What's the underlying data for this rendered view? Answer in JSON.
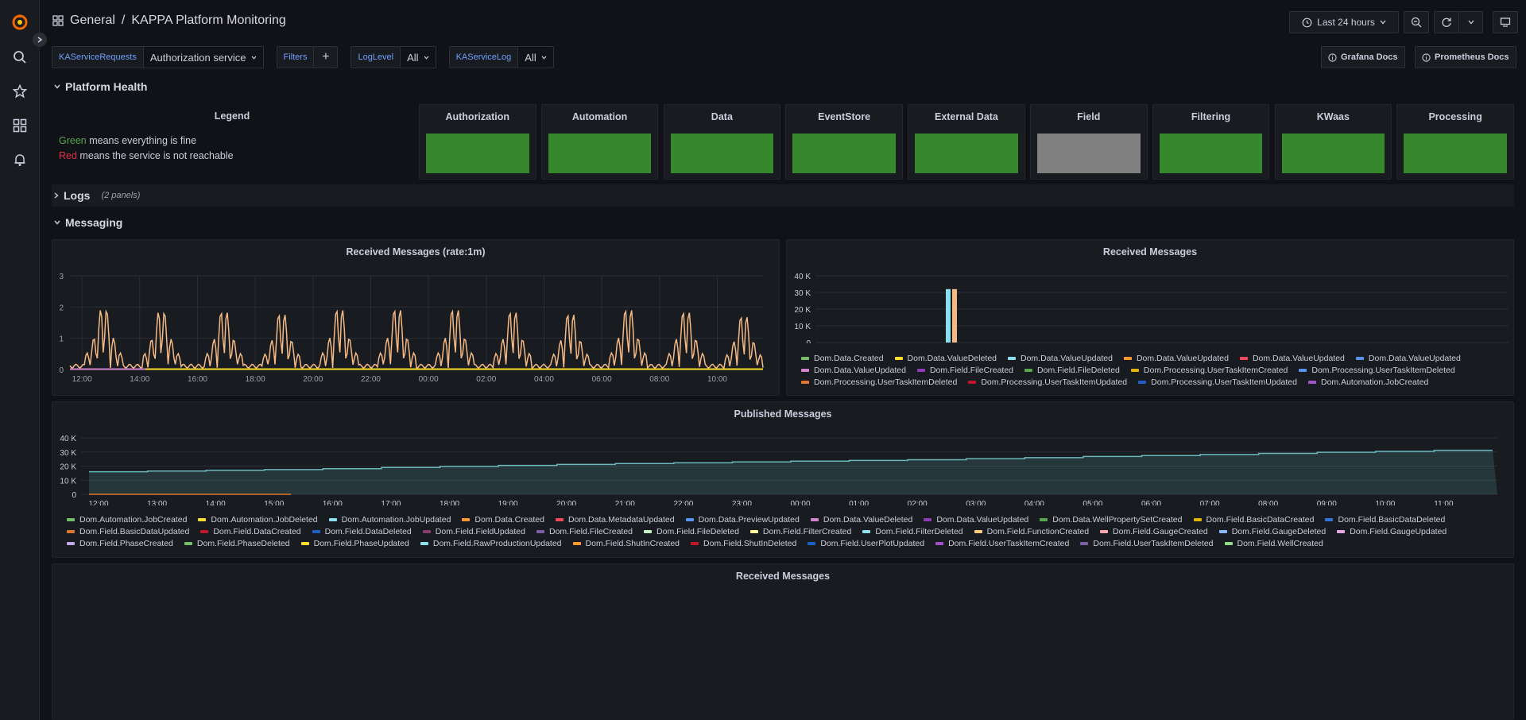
{
  "header": {
    "folder": "General",
    "separator": "/",
    "title": "KAPPA Platform Monitoring",
    "time_range": "Last 24 hours"
  },
  "variables": [
    {
      "label": "KAServiceRequests",
      "value": "Authorization service"
    },
    {
      "label": "Filters",
      "value": "+"
    },
    {
      "label": "LogLevel",
      "value": "All"
    },
    {
      "label": "KAServiceLog",
      "value": "All"
    }
  ],
  "links": {
    "grafana_docs": "Grafana Docs",
    "prometheus_docs": "Prometheus Docs"
  },
  "rows": {
    "platform_health": "Platform Health",
    "logs": "Logs",
    "logs_count": "(2 panels)",
    "messaging": "Messaging"
  },
  "legend_panel": {
    "title": "Legend",
    "line1_color_word": "Green",
    "line1_rest": "means everything is fine",
    "line2_color_word": "Red",
    "line2_rest": "means the service is not reachable"
  },
  "services": [
    {
      "name": "Authorization",
      "color": "#37872d"
    },
    {
      "name": "Automation",
      "color": "#37872d"
    },
    {
      "name": "Data",
      "color": "#37872d"
    },
    {
      "name": "EventStore",
      "color": "#37872d"
    },
    {
      "name": "External Data",
      "color": "#37872d"
    },
    {
      "name": "Field",
      "color": "#808080"
    },
    {
      "name": "Filtering",
      "color": "#37872d"
    },
    {
      "name": "KWaas",
      "color": "#37872d"
    },
    {
      "name": "Processing",
      "color": "#37872d"
    }
  ],
  "panels": {
    "rate": "Received Messages (rate:1m)",
    "received": "Received Messages",
    "published": "Published Messages",
    "received_bottom": "Received Messages"
  },
  "chart_data": [
    {
      "type": "line",
      "title": "Received Messages (rate:1m)",
      "x_ticks": [
        "12:00",
        "14:00",
        "16:00",
        "18:00",
        "20:00",
        "22:00",
        "00:00",
        "02:00",
        "04:00",
        "06:00",
        "08:00",
        "10:00"
      ],
      "y_ticks": [
        "0",
        "1",
        "2",
        "3"
      ],
      "ylim": [
        0,
        3
      ],
      "series": [
        {
          "color": "#f4b984",
          "peak_hours": [
            "12:45",
            "14:45",
            "16:55",
            "18:55",
            "20:55",
            "22:55",
            "00:55",
            "02:55",
            "04:55",
            "06:55",
            "08:55",
            "10:55"
          ],
          "peak_values": [
            2.6,
            2.5,
            2.5,
            2.4,
            2.6,
            2.6,
            2.6,
            2.5,
            2.4,
            2.6,
            2.5,
            2.3
          ],
          "baseline": 0.05
        },
        {
          "color": "#d683ce",
          "values_note": "0"
        },
        {
          "color": "#fade2a",
          "values_note": "0"
        }
      ]
    },
    {
      "type": "bar",
      "title": "Received Messages",
      "y_ticks": [
        "0",
        "10 K",
        "20 K",
        "30 K",
        "40 K"
      ],
      "ylim": [
        0,
        40000
      ],
      "bars": [
        {
          "series": "Dom.Data.ValueUpdated",
          "value": 32000,
          "color": "#8ae0ef"
        },
        {
          "series": "Dom.Data.ValueUpdated",
          "value": 32000,
          "color": "#f4b984"
        }
      ],
      "legend": [
        {
          "name": "Dom.Data.Created",
          "color": "#73bf69"
        },
        {
          "name": "Dom.Data.ValueDeleted",
          "color": "#fade2a"
        },
        {
          "name": "Dom.Data.ValueUpdated",
          "color": "#8ae0ef"
        },
        {
          "name": "Dom.Data.ValueUpdated",
          "color": "#ff9830"
        },
        {
          "name": "Dom.Data.ValueUpdated",
          "color": "#f2495c"
        },
        {
          "name": "Dom.Data.ValueUpdated",
          "color": "#5794f2"
        },
        {
          "name": "Dom.Data.ValueUpdated",
          "color": "#d683ce"
        },
        {
          "name": "Dom.Field.FileCreated",
          "color": "#8f3bb8"
        },
        {
          "name": "Dom.Field.FileDeleted",
          "color": "#56a64b"
        },
        {
          "name": "Dom.Processing.UserTaskItemCreated",
          "color": "#e0b400"
        },
        {
          "name": "Dom.Processing.UserTaskItemDeleted",
          "color": "#5794f2"
        },
        {
          "name": "Dom.Processing.UserTaskItemDeleted",
          "color": "#e0752d"
        },
        {
          "name": "Dom.Processing.UserTaskItemUpdated",
          "color": "#c4162a"
        },
        {
          "name": "Dom.Processing.UserTaskItemUpdated",
          "color": "#1f60c4"
        },
        {
          "name": "Dom.Automation.JobCreated",
          "color": "#a352cc"
        }
      ]
    },
    {
      "type": "area",
      "title": "Published Messages",
      "x_ticks": [
        "12:00",
        "13:00",
        "14:00",
        "15:00",
        "16:00",
        "17:00",
        "18:00",
        "19:00",
        "20:00",
        "21:00",
        "22:00",
        "23:00",
        "00:00",
        "01:00",
        "02:00",
        "03:00",
        "04:00",
        "05:00",
        "06:00",
        "07:00",
        "08:00",
        "09:00",
        "10:00",
        "11:00"
      ],
      "y_ticks": [
        "0",
        "10 K",
        "20 K",
        "30 K",
        "40 K"
      ],
      "ylim": [
        0,
        40000
      ],
      "series": [
        {
          "color": "#6ab8bb",
          "values": [
            16000,
            16500,
            17000,
            17500,
            18200,
            19000,
            19800,
            20500,
            21200,
            21800,
            22300,
            23000,
            23500,
            24000,
            24500,
            25200,
            26000,
            26800,
            27500,
            28200,
            29000,
            29800,
            30400,
            31200
          ]
        }
      ],
      "legend": [
        {
          "name": "Dom.Automation.JobCreated",
          "color": "#73bf69"
        },
        {
          "name": "Dom.Automation.JobDeleted",
          "color": "#fade2a"
        },
        {
          "name": "Dom.Automation.JobUpdated",
          "color": "#8ae0ef"
        },
        {
          "name": "Dom.Data.Created",
          "color": "#ff9830"
        },
        {
          "name": "Dom.Data.MetadataUpdated",
          "color": "#f2495c"
        },
        {
          "name": "Dom.Data.PreviewUpdated",
          "color": "#5794f2"
        },
        {
          "name": "Dom.Data.ValueDeleted",
          "color": "#d683ce"
        },
        {
          "name": "Dom.Data.ValueUpdated",
          "color": "#8f3bb8"
        },
        {
          "name": "Dom.Data.WellPropertySetCreated",
          "color": "#56a64b"
        },
        {
          "name": "Dom.Field.BasicDataCreated",
          "color": "#e0b400"
        },
        {
          "name": "Dom.Field.BasicDataDeleted",
          "color": "#3274d9"
        },
        {
          "name": "Dom.Field.BasicDataUpdated",
          "color": "#e0752d"
        },
        {
          "name": "Dom.Field.DataCreated",
          "color": "#c4162a"
        },
        {
          "name": "Dom.Field.DataDeleted",
          "color": "#1f60c4"
        },
        {
          "name": "Dom.Field.FieldUpdated",
          "color": "#8a3b6e"
        },
        {
          "name": "Dom.Field.FileCreated",
          "color": "#7d5fa8"
        },
        {
          "name": "Dom.Field.FileDeleted",
          "color": "#c8f2c2"
        },
        {
          "name": "Dom.Field.FilterCreated",
          "color": "#fff899"
        },
        {
          "name": "Dom.Field.FilterDeleted",
          "color": "#8ae0ef"
        },
        {
          "name": "Dom.Field.FunctionCreated",
          "color": "#ffcb7d"
        },
        {
          "name": "Dom.Field.GaugeCreated",
          "color": "#ffa6b0"
        },
        {
          "name": "Dom.Field.GaugeDeleted",
          "color": "#8ab8ff"
        },
        {
          "name": "Dom.Field.GaugeUpdated",
          "color": "#e5a8e2"
        },
        {
          "name": "Dom.Field.PhaseCreated",
          "color": "#c0a8e6"
        },
        {
          "name": "Dom.Field.PhaseDeleted",
          "color": "#73bf69"
        },
        {
          "name": "Dom.Field.PhaseUpdated",
          "color": "#fade2a"
        },
        {
          "name": "Dom.Field.RawProductionUpdated",
          "color": "#8ae0ef"
        },
        {
          "name": "Dom.Field.ShutInCreated",
          "color": "#ff9830"
        },
        {
          "name": "Dom.Field.ShutInDeleted",
          "color": "#c4162a"
        },
        {
          "name": "Dom.Field.UserPlotUpdated",
          "color": "#1f60c4"
        },
        {
          "name": "Dom.Field.UserTaskItemCreated",
          "color": "#a352cc"
        },
        {
          "name": "Dom.Field.UserTaskItemDeleted",
          "color": "#7d5fa8"
        },
        {
          "name": "Dom.Field.WellCreated",
          "color": "#96d98d"
        }
      ]
    }
  ]
}
